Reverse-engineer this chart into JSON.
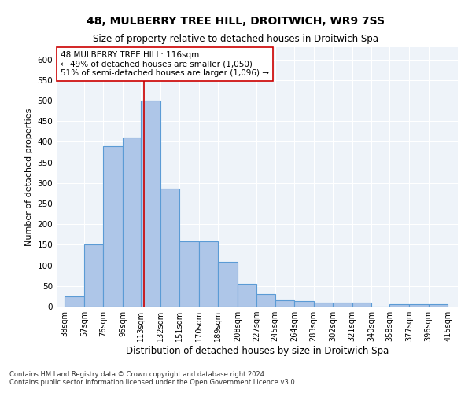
{
  "title": "48, MULBERRY TREE HILL, DROITWICH, WR9 7SS",
  "subtitle": "Size of property relative to detached houses in Droitwich Spa",
  "xlabel": "Distribution of detached houses by size in Droitwich Spa",
  "ylabel": "Number of detached properties",
  "footnote1": "Contains HM Land Registry data © Crown copyright and database right 2024.",
  "footnote2": "Contains public sector information licensed under the Open Government Licence v3.0.",
  "bar_left_edges": [
    38,
    57,
    76,
    95,
    113,
    132,
    151,
    170,
    189,
    208,
    227,
    245,
    264,
    283,
    302,
    321,
    340,
    358,
    377,
    396
  ],
  "bar_widths": [
    19,
    19,
    19,
    18,
    19,
    19,
    19,
    19,
    19,
    19,
    18,
    19,
    19,
    19,
    19,
    19,
    18,
    19,
    19,
    19
  ],
  "bar_heights": [
    25,
    150,
    390,
    410,
    500,
    287,
    158,
    158,
    108,
    55,
    30,
    16,
    13,
    10,
    10,
    10,
    0,
    6,
    6,
    6
  ],
  "bar_color": "#aec6e8",
  "bar_edgecolor": "#5b9bd5",
  "bar_linewidth": 0.8,
  "tick_labels": [
    "38sqm",
    "57sqm",
    "76sqm",
    "95sqm",
    "113sqm",
    "132sqm",
    "151sqm",
    "170sqm",
    "189sqm",
    "208sqm",
    "227sqm",
    "245sqm",
    "264sqm",
    "283sqm",
    "302sqm",
    "321sqm",
    "340sqm",
    "358sqm",
    "377sqm",
    "396sqm",
    "415sqm"
  ],
  "tick_positions": [
    38,
    57,
    76,
    95,
    113,
    132,
    151,
    170,
    189,
    208,
    227,
    245,
    264,
    283,
    302,
    321,
    340,
    358,
    377,
    396,
    415
  ],
  "ylim": [
    0,
    630
  ],
  "xlim": [
    30,
    425
  ],
  "vline_x": 116,
  "vline_color": "#cc0000",
  "vline_linewidth": 1.2,
  "annotation_line1": "48 MULBERRY TREE HILL: 116sqm",
  "annotation_line2": "← 49% of detached houses are smaller (1,050)",
  "annotation_line3": "51% of semi-detached houses are larger (1,096) →",
  "annotation_box_color": "#ffffff",
  "annotation_box_edgecolor": "#cc0000",
  "annotation_fontsize": 7.5,
  "axes_background": "#eef3f9",
  "grid_color": "#ffffff",
  "title_fontsize": 10,
  "subtitle_fontsize": 8.5,
  "ylabel_fontsize": 8,
  "xlabel_fontsize": 8.5,
  "tick_fontsize": 7,
  "ytick_values": [
    0,
    50,
    100,
    150,
    200,
    250,
    300,
    350,
    400,
    450,
    500,
    550,
    600
  ]
}
